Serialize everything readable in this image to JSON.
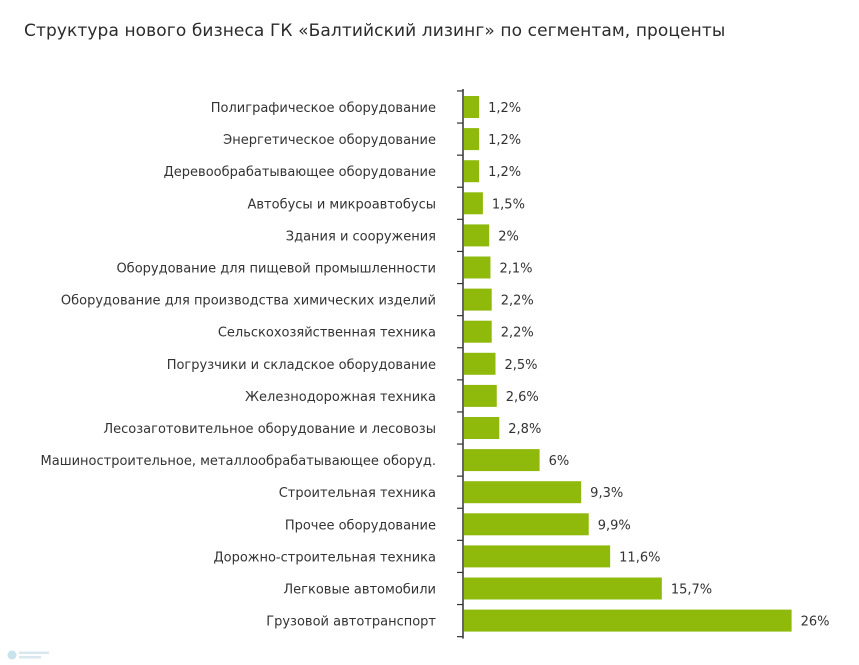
{
  "chart_data": {
    "type": "bar",
    "orientation": "horizontal",
    "title": "Структура нового бизнеса ГК «Балтийский лизинг» по сегментам, проценты",
    "bar_color": "#8fba0c",
    "categories": [
      "Полиграфическое оборудование",
      "Энергетическое оборудование",
      "Деревообрабатывающее оборудование",
      "Автобусы и микроавтобусы",
      "Здания и сооружения",
      "Оборудование для пищевой промышленности",
      "Оборудование для производства химических изделий",
      "Сельскохозяйственная техника",
      "Погрузчики и складское оборудование",
      "Железнодорожная техника",
      "Лесозаготовительное оборудование и лесовозы",
      "Машиностроительное, металлообрабатывающее оборуд.",
      "Строительная техника",
      "Прочее оборудование",
      "Дорожно-строительная техника",
      "Легковые автомобили",
      "Грузовой автотранспорт"
    ],
    "values": [
      1.2,
      1.2,
      1.2,
      1.5,
      2,
      2.1,
      2.2,
      2.2,
      2.5,
      2.6,
      2.8,
      6,
      9.3,
      9.9,
      11.6,
      15.7,
      26
    ],
    "labels": [
      "1,2%",
      "1,2%",
      "1,2%",
      "1,5%",
      "2%",
      "2,1%",
      "2,2%",
      "2,2%",
      "2,5%",
      "2,6%",
      "2,8%",
      "6%",
      "9,3%",
      "9,9%",
      "11,6%",
      "15,7%",
      "26%"
    ]
  }
}
